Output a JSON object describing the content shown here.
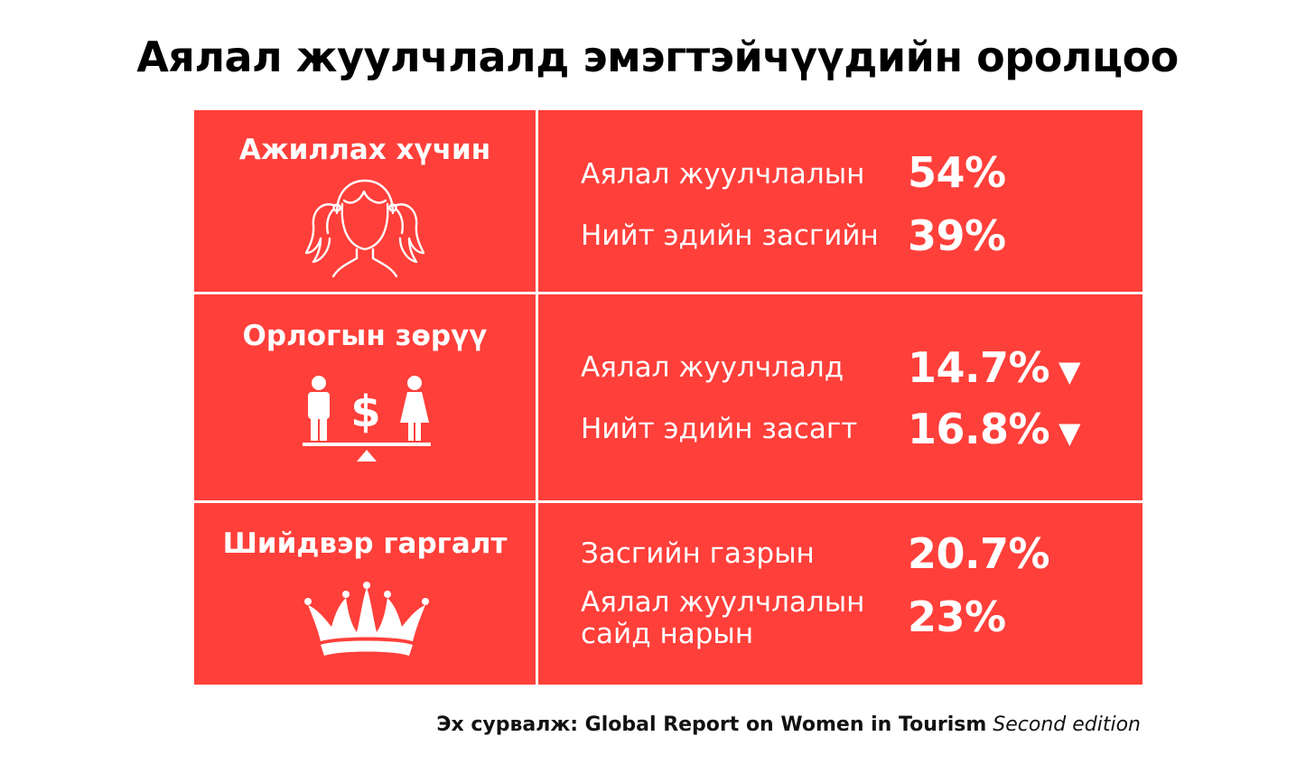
{
  "title": "Аялал жуулчлалд эмэгтэйчүүдийн оролцоо",
  "colors": {
    "panel": "#ff3f3a",
    "text": "#ffffff",
    "divider": "#ffffff"
  },
  "rows": [
    {
      "category": "Ажиллах хүчин",
      "icon": "woman-face-icon",
      "stats": [
        {
          "label": "Аялал жуулчлалын",
          "value": "54%"
        },
        {
          "label": "Нийт эдийн засгийн",
          "value": "39%"
        }
      ]
    },
    {
      "category": "Орлогын зөрүү",
      "icon": "pay-gap-scale-icon",
      "stats": [
        {
          "label": "Аялал жуулчлалд",
          "value": "14.7%",
          "arrow": "▼"
        },
        {
          "label": "Нийт эдийн засагт",
          "value": "16.8%",
          "arrow": "▼"
        }
      ]
    },
    {
      "category": "Шийдвэр гаргалт",
      "icon": "crown-icon",
      "stats": [
        {
          "label": "Засгийн газрын",
          "value": "20.7%"
        },
        {
          "label_line1": "Аялал жуулчлалын",
          "label_line2": "сайд нарын",
          "value": "23%"
        }
      ]
    }
  ],
  "source": {
    "bold": "Эх сурвалж: Global Report on Women in Tourism",
    "italic": "Second edition"
  }
}
